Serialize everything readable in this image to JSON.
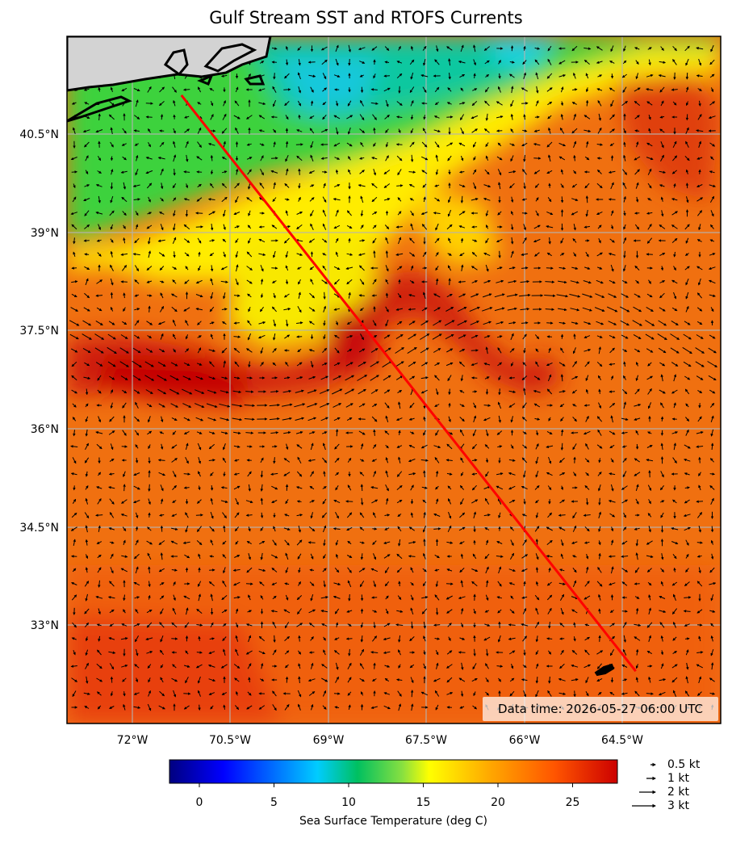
{
  "title": "Gulf Stream SST and RTOFS Currents",
  "data_time": "Data time: 2026-05-27 06:00 UTC",
  "colorbar": {
    "label": "Sea Surface Temperature (deg C)",
    "range": [
      -2,
      28
    ],
    "ticks": [
      "0",
      "5",
      "10",
      "15",
      "20",
      "25"
    ],
    "tick_values": [
      0,
      5,
      10,
      15,
      20,
      25
    ]
  },
  "map": {
    "lon_range": [
      -73.5,
      -63.5
    ],
    "lat_range": [
      31.5,
      42.0
    ],
    "lon_ticks": [
      -72,
      -70.5,
      -69,
      -67.5,
      -66,
      -64.5
    ],
    "lon_tick_labels": [
      "72°W",
      "70.5°W",
      "69°W",
      "67.5°W",
      "66°W",
      "64.5°W"
    ],
    "lat_ticks": [
      40.5,
      39,
      37.5,
      36,
      34.5,
      33
    ],
    "lat_tick_labels": [
      "40.5°N",
      "39°N",
      "37.5°N",
      "36°N",
      "34.5°N",
      "33°N"
    ],
    "route": {
      "start": [
        -71.75,
        41.1
      ],
      "end": [
        -64.8,
        32.3
      ],
      "color": "#ff0000"
    },
    "land_color": "#d3d3d3"
  },
  "vector_key": [
    "0.5 kt",
    "1 kt",
    "2 kt",
    "3 kt"
  ],
  "vector_key_values": [
    0.5,
    1,
    2,
    3
  ]
}
